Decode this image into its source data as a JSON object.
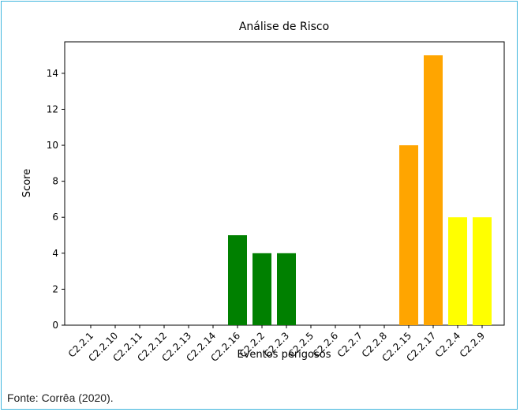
{
  "caption": "Fonte: Corrêa (2020).",
  "chart_data": {
    "type": "bar",
    "title": "Análise de Risco",
    "xlabel": "Eventos perigosos",
    "ylabel": "Score",
    "categories": [
      "C2.2.1",
      "C2.2.10",
      "C2.2.11",
      "C2.2.12",
      "C2.2.13",
      "C2.2.14",
      "C2.2.16",
      "C2.2.2",
      "C2.2.3",
      "C2.2.5",
      "C2.2.6",
      "C2.2.7",
      "C2.2.8",
      "C2.2.15",
      "C2.2.17",
      "C2.2.4",
      "C2.2.9"
    ],
    "values": [
      0,
      0,
      0,
      0,
      0,
      0,
      5,
      4,
      4,
      0,
      0,
      0,
      0,
      10,
      15,
      6,
      6
    ],
    "colors": [
      "#008000",
      "#008000",
      "#008000",
      "#008000",
      "#008000",
      "#008000",
      "#008000",
      "#008000",
      "#008000",
      "#008000",
      "#008000",
      "#008000",
      "#008000",
      "#ffa500",
      "#ffa500",
      "#ffff00",
      "#ffff00"
    ],
    "ylim": [
      0,
      15.75
    ],
    "yticks": [
      0,
      2,
      4,
      6,
      8,
      10,
      12,
      14
    ],
    "grid": false
  }
}
